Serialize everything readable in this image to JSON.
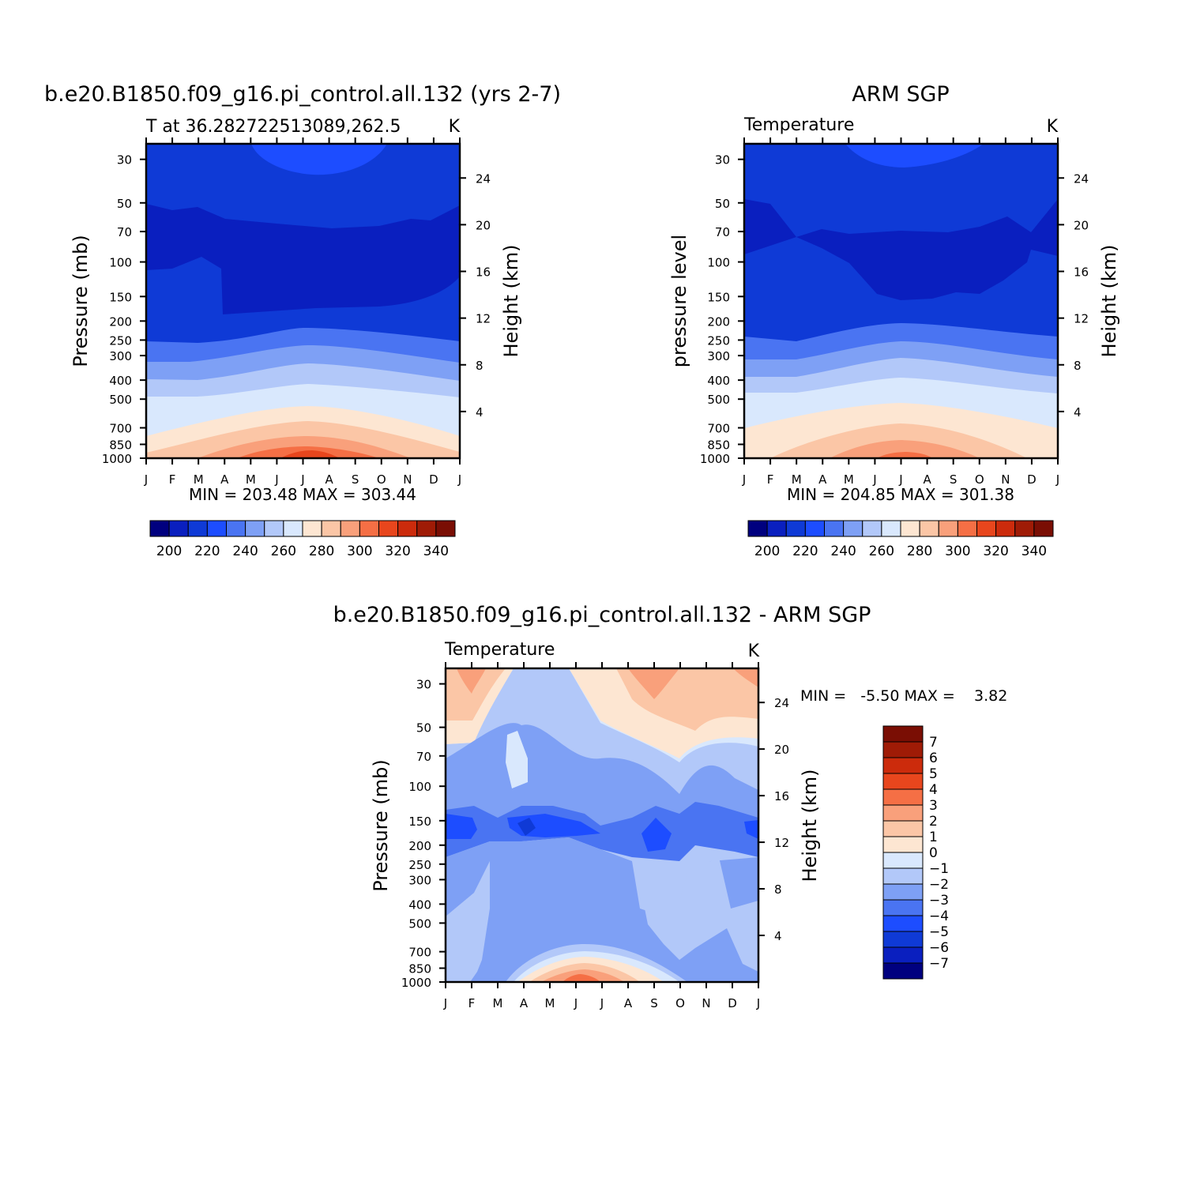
{
  "palette": [
    "#00007f",
    "#0a1fbf",
    "#0f3ad6",
    "#1d4dff",
    "#4a74f2",
    "#7ea0f5",
    "#b2c8f9",
    "#d9e8fd",
    "#fde6d2",
    "#fbc6a6",
    "#f9a07b",
    "#f56f45",
    "#e8461d",
    "#cc2b0c",
    "#9f1b06",
    "#7a0e04"
  ],
  "chart_data": [
    {
      "type": "heatmap",
      "title": "b.e20.B1850.f09_g16.pi_control.all.132 (yrs 2-7)",
      "subtitle_left": "T at 36.282722513089,262.5",
      "subtitle_right": "K",
      "ylabel": "Pressure (mb)",
      "ylabel_right": "Height (km)",
      "min_max_text": "MIN = 203.48 MAX = 303.44",
      "x_ticks": [
        "J",
        "F",
        "M",
        "A",
        "M",
        "J",
        "J",
        "A",
        "S",
        "O",
        "N",
        "D",
        "J"
      ],
      "y_ticks": [
        "30",
        "50",
        "70",
        "100",
        "150",
        "200",
        "250",
        "300",
        "400",
        "500",
        "700",
        "850",
        "1000"
      ],
      "y_ticks_right": [
        "24",
        "20",
        "16",
        "12",
        "8",
        "4"
      ],
      "levels": [
        200,
        210,
        220,
        230,
        240,
        250,
        260,
        270,
        280,
        290,
        300,
        310,
        320,
        330,
        340
      ],
      "colorbar_labels": [
        "200",
        "220",
        "240",
        "260",
        "280",
        "300",
        "320",
        "340"
      ],
      "min": 203.48,
      "max": 303.44
    },
    {
      "type": "heatmap",
      "title": "ARM SGP",
      "subtitle_left": "Temperature",
      "subtitle_right": "K",
      "ylabel": "pressure level",
      "ylabel_right": "Height (km)",
      "min_max_text": "MIN = 204.85 MAX = 301.38",
      "x_ticks": [
        "J",
        "F",
        "M",
        "A",
        "M",
        "J",
        "J",
        "A",
        "S",
        "O",
        "N",
        "D",
        "J"
      ],
      "y_ticks": [
        "30",
        "50",
        "70",
        "100",
        "150",
        "200",
        "250",
        "300",
        "400",
        "500",
        "700",
        "850",
        "1000"
      ],
      "y_ticks_right": [
        "24",
        "20",
        "16",
        "12",
        "8",
        "4"
      ],
      "levels": [
        200,
        210,
        220,
        230,
        240,
        250,
        260,
        270,
        280,
        290,
        300,
        310,
        320,
        330,
        340
      ],
      "colorbar_labels": [
        "200",
        "220",
        "240",
        "260",
        "280",
        "300",
        "320",
        "340"
      ],
      "min": 204.85,
      "max": 301.38
    },
    {
      "type": "heatmap",
      "title": "b.e20.B1850.f09_g16.pi_control.all.132 - ARM SGP",
      "subtitle_left": "Temperature",
      "subtitle_right": "K",
      "ylabel": "Pressure (mb)",
      "ylabel_right": "Height (km)",
      "min_max_text": "MIN =   -5.50 MAX =    3.82",
      "x_ticks": [
        "J",
        "F",
        "M",
        "A",
        "M",
        "J",
        "J",
        "A",
        "S",
        "O",
        "N",
        "D",
        "J"
      ],
      "y_ticks": [
        "30",
        "50",
        "70",
        "100",
        "150",
        "200",
        "250",
        "300",
        "400",
        "500",
        "700",
        "850",
        "1000"
      ],
      "y_ticks_right": [
        "24",
        "20",
        "16",
        "12",
        "8",
        "4"
      ],
      "levels": [
        -7,
        -6,
        -5,
        -4,
        -3,
        -2,
        -1,
        0,
        1,
        2,
        3,
        4,
        5,
        6,
        7
      ],
      "colorbar_labels": [
        "7",
        "6",
        "5",
        "4",
        "3",
        "2",
        "1",
        "0",
        "-1",
        "-2",
        "-3",
        "-4",
        "-5",
        "-6",
        "-7"
      ],
      "min": -5.5,
      "max": 3.82
    }
  ]
}
